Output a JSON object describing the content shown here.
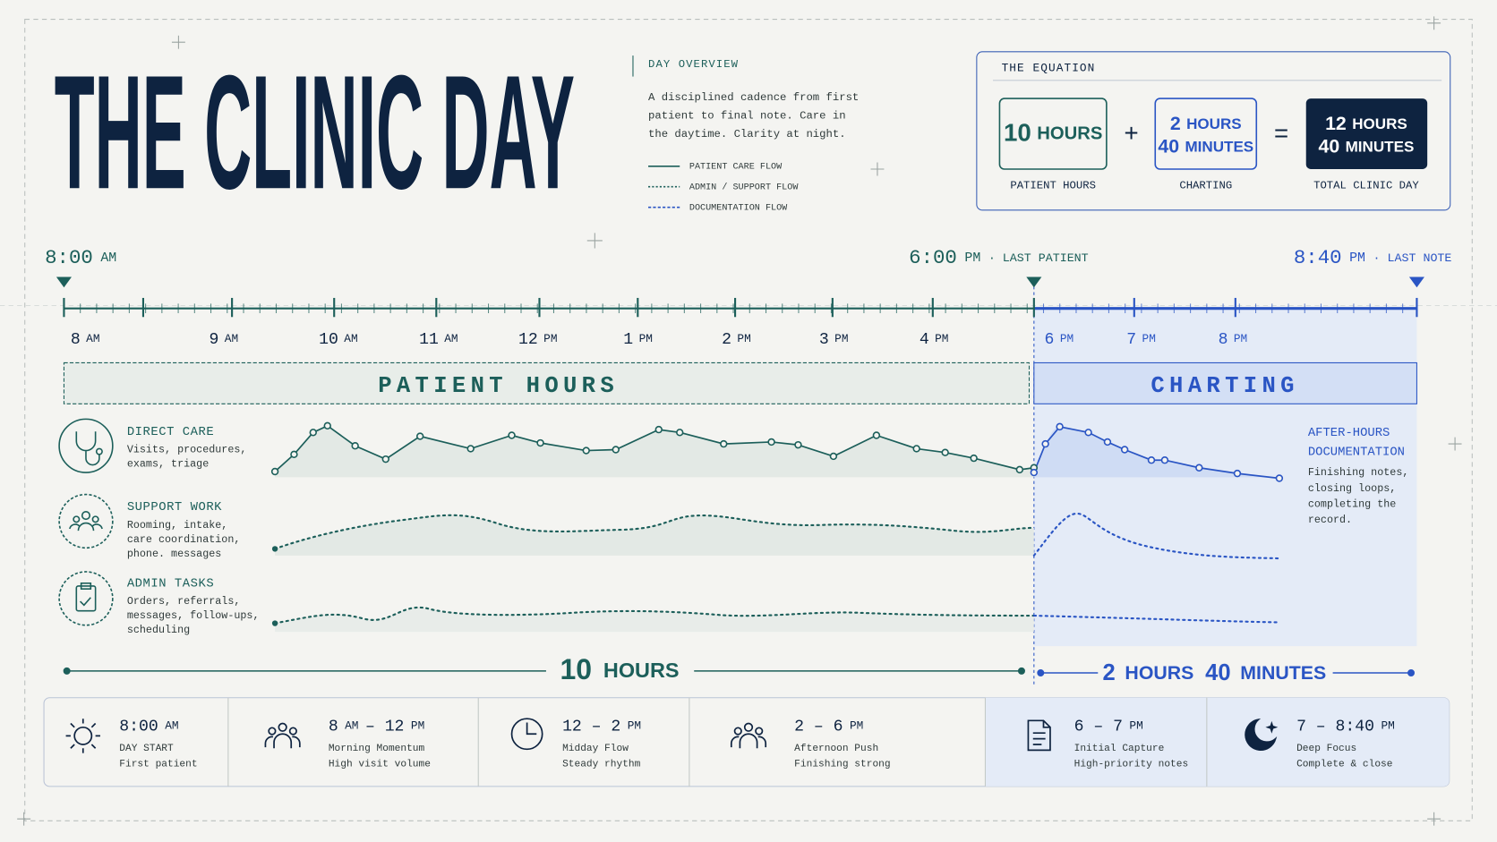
{
  "header": {
    "title": "THE CLINIC DAY"
  },
  "overview": {
    "heading": "DAY OVERVIEW",
    "text": [
      "A disciplined cadence from first",
      "patient to final note. Care in",
      "the daytime. Clarity at night."
    ],
    "legend": [
      "PATIENT CARE FLOW",
      "ADMIN / SUPPORT FLOW",
      "DOCUMENTATION FLOW"
    ]
  },
  "equation": {
    "heading": "THE EQUATION",
    "plus": "+",
    "equals": "=",
    "terms": [
      {
        "lines": [
          [
            "10",
            "HOURS"
          ]
        ],
        "label": "PATIENT HOURS"
      },
      {
        "lines": [
          [
            "2",
            "HOURS"
          ],
          [
            "40",
            "MINUTES"
          ]
        ],
        "label": "CHARTING"
      },
      {
        "lines": [
          [
            "12",
            "HOURS"
          ],
          [
            "40",
            "MINUTES"
          ]
        ],
        "label": "TOTAL CLINIC DAY"
      }
    ]
  },
  "markers": [
    {
      "time": "8:00",
      "suffix": "AM"
    },
    {
      "time": "6:00",
      "suffix": "PM",
      "note": "· LAST PATIENT"
    },
    {
      "time": "8:40",
      "suffix": "PM",
      "note": "· LAST NOTE"
    }
  ],
  "axis": {
    "hours": [
      [
        "8",
        "AM"
      ],
      [
        "9",
        "AM"
      ],
      [
        "10",
        "AM"
      ],
      [
        "11",
        "AM"
      ],
      [
        "12",
        "PM"
      ],
      [
        "1",
        "PM"
      ],
      [
        "2",
        "PM"
      ],
      [
        "3",
        "PM"
      ],
      [
        "4",
        "PM"
      ],
      [
        "6",
        "PM"
      ],
      [
        "7",
        "PM"
      ],
      [
        "8",
        "PM"
      ]
    ]
  },
  "bands": [
    "PATIENT HOURS",
    "CHARTING"
  ],
  "rows": [
    {
      "title": "DIRECT CARE",
      "desc": [
        "Visits, procedures,",
        "exams, triage"
      ]
    },
    {
      "title": "SUPPORT WORK",
      "desc": [
        "Rooming, intake,",
        "care coordination,",
        "phone. messages"
      ]
    },
    {
      "title": "ADMIN TASKS",
      "desc": [
        "Orders, referrals,",
        "messages, follow-ups,",
        "scheduling"
      ]
    }
  ],
  "after_hours": {
    "title": [
      "AFTER-HOURS",
      "DOCUMENTATION"
    ],
    "desc": [
      "Finishing notes,",
      "closing loops,",
      "completing the",
      "record."
    ]
  },
  "durations": [
    [
      "10",
      "HOURS"
    ],
    [
      "2",
      "HOURS",
      "40",
      "MINUTES"
    ]
  ],
  "phases": [
    {
      "time": [
        "8:00",
        "AM"
      ],
      "lines": [
        "DAY START",
        "First patient"
      ]
    },
    {
      "time": [
        "8",
        "AM",
        "– 12",
        "PM"
      ],
      "lines": [
        "Morning Momentum",
        "High visit volume"
      ]
    },
    {
      "time": [
        "12 – 2",
        "PM"
      ],
      "lines": [
        "Midday Flow",
        "Steady rhythm"
      ]
    },
    {
      "time": [
        "2 – 6",
        "PM"
      ],
      "lines": [
        "Afternoon Push",
        "Finishing strong"
      ]
    },
    {
      "time": [
        "6 – 7",
        "PM"
      ],
      "lines": [
        "Initial Capture",
        "High-priority notes"
      ]
    },
    {
      "time": [
        "7 – 8:40",
        "PM"
      ],
      "lines": [
        "Deep Focus",
        "Complete & close"
      ]
    }
  ]
}
